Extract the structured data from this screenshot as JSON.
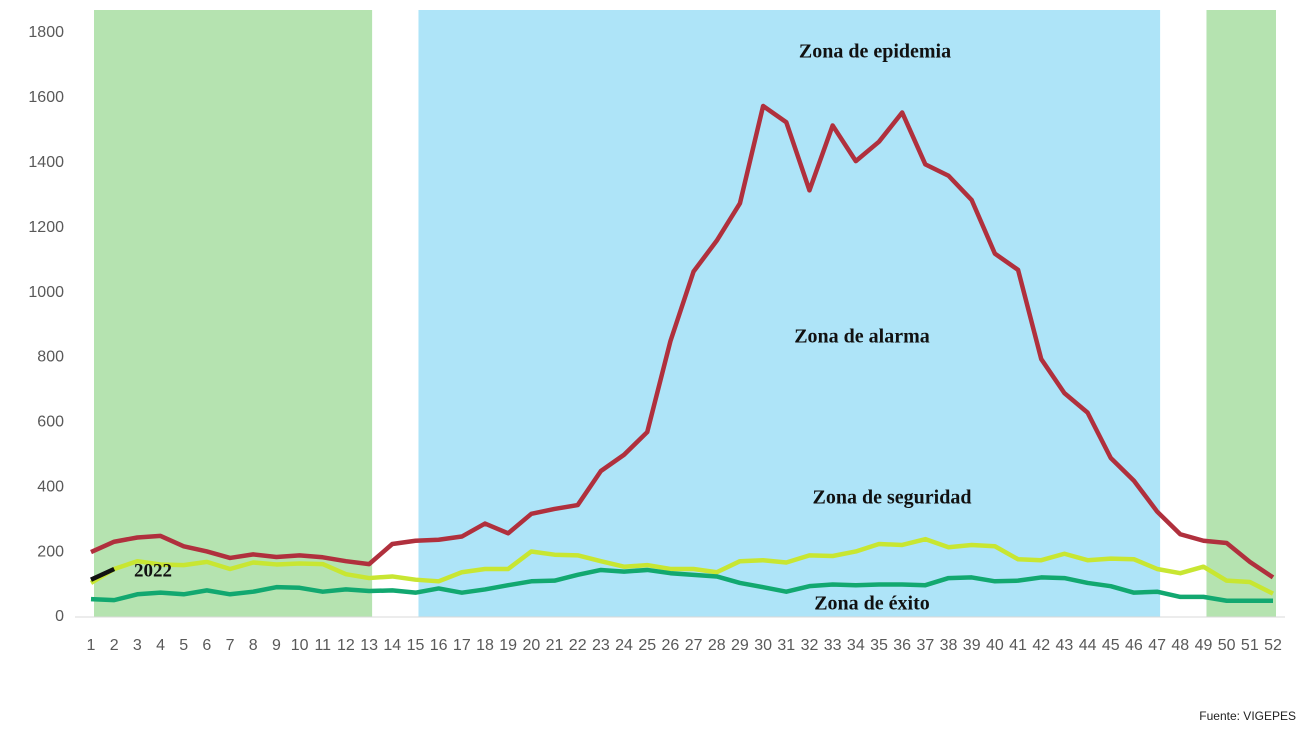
{
  "chart_data": {
    "type": "line",
    "categories": [
      "1",
      "2",
      "3",
      "4",
      "5",
      "6",
      "7",
      "8",
      "9",
      "10",
      "11",
      "12",
      "13",
      "14",
      "15",
      "16",
      "17",
      "18",
      "19",
      "20",
      "21",
      "22",
      "23",
      "24",
      "25",
      "26",
      "27",
      "28",
      "29",
      "30",
      "31",
      "32",
      "33",
      "34",
      "35",
      "36",
      "37",
      "38",
      "39",
      "40",
      "41",
      "42",
      "43",
      "44",
      "45",
      "46",
      "47",
      "48",
      "49",
      "50",
      "51",
      "52"
    ],
    "series": [
      {
        "color": "#b0303d",
        "values": [
          200,
          232,
          245,
          250,
          218,
          202,
          182,
          193,
          185,
          190,
          184,
          172,
          163,
          225,
          235,
          238,
          248,
          288,
          258,
          318,
          333,
          345,
          450,
          500,
          570,
          850,
          1065,
          1160,
          1275,
          1575,
          1525,
          1315,
          1515,
          1405,
          1465,
          1555,
          1395,
          1360,
          1285,
          1120,
          1070,
          795,
          690,
          630,
          490,
          420,
          325,
          255,
          235,
          228,
          170,
          122
        ]
      },
      {
        "color": "#c8e632",
        "values": [
          105,
          148,
          172,
          162,
          160,
          170,
          148,
          168,
          162,
          165,
          163,
          132,
          120,
          125,
          115,
          110,
          138,
          148,
          148,
          202,
          192,
          190,
          172,
          155,
          160,
          148,
          148,
          138,
          172,
          175,
          168,
          190,
          188,
          202,
          225,
          222,
          240,
          215,
          222,
          218,
          178,
          175,
          195,
          175,
          180,
          178,
          148,
          135,
          155,
          112,
          108,
          72
        ]
      },
      {
        "color": "#12a870",
        "values": [
          55,
          52,
          70,
          75,
          70,
          82,
          70,
          78,
          92,
          90,
          78,
          85,
          80,
          82,
          75,
          88,
          75,
          85,
          98,
          110,
          112,
          130,
          145,
          140,
          145,
          135,
          130,
          125,
          105,
          92,
          78,
          95,
          100,
          98,
          100,
          100,
          98,
          120,
          122,
          110,
          112,
          122,
          120,
          105,
          95,
          75,
          78,
          62,
          62,
          50,
          50,
          50
        ]
      },
      {
        "name": "2022",
        "color": "#111111",
        "values": [
          115,
          148,
          null,
          null,
          null,
          null,
          null,
          null,
          null,
          null,
          null,
          null,
          null,
          null,
          null,
          null,
          null,
          null,
          null,
          null,
          null,
          null,
          null,
          null,
          null,
          null,
          null,
          null,
          null,
          null,
          null,
          null,
          null,
          null,
          null,
          null,
          null,
          null,
          null,
          null,
          null,
          null,
          null,
          null,
          null,
          null,
          null,
          null,
          null,
          null,
          null,
          null
        ]
      }
    ],
    "shaded_ranges": [
      {
        "from": "1",
        "to": "13",
        "color": "#b5e3b0"
      },
      {
        "from": "15",
        "to": "47",
        "color": "#aee4f8"
      },
      {
        "from": "49",
        "to": "52",
        "color": "#b5e3b0"
      }
    ],
    "annotations": [
      "Zona de epidemia",
      "Zona de alarma",
      "Zona de seguridad",
      "Zona de éxito"
    ],
    "source": "Fuente: VIGEPES",
    "ylim": [
      0,
      1800
    ],
    "yticks": [
      0,
      200,
      400,
      600,
      800,
      1000,
      1200,
      1400,
      1600,
      1800
    ],
    "grid": false
  }
}
